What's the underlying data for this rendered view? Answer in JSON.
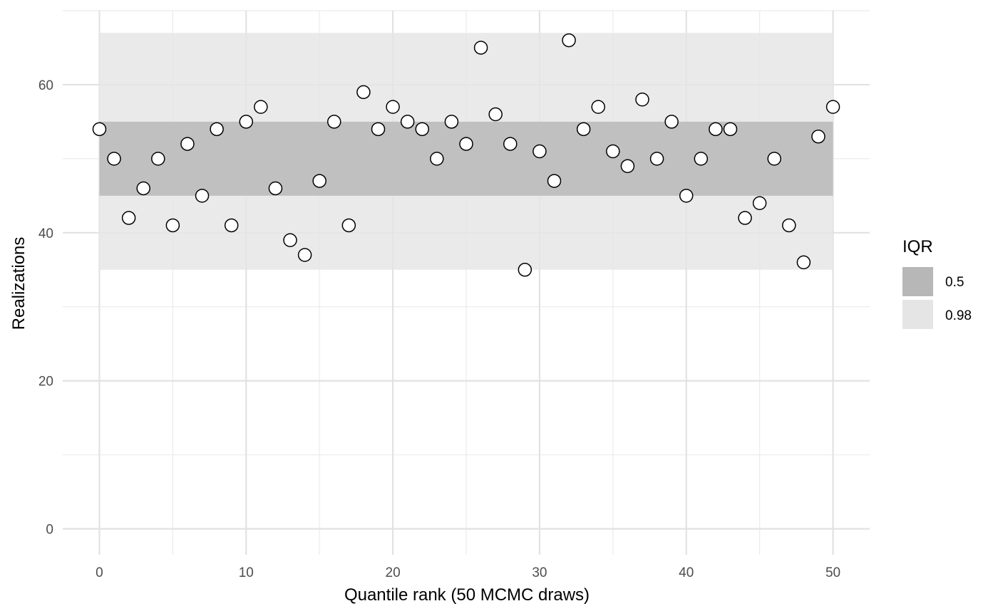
{
  "chart_data": {
    "type": "scatter",
    "title": "",
    "xlabel": "Quantile rank (50 MCMC draws)",
    "ylabel": "Realizations",
    "xlim": [
      -2.5,
      52.5
    ],
    "ylim": [
      -3.5,
      70
    ],
    "x_ticks": [
      0,
      10,
      20,
      30,
      40,
      50
    ],
    "y_ticks": [
      0,
      20,
      40,
      60
    ],
    "grid": true,
    "legend": {
      "title": "IQR",
      "placement": "right",
      "entries": [
        {
          "label": "0.5",
          "color": "#b7b7b7"
        },
        {
          "label": "0.98",
          "color": "#e5e5e5"
        }
      ]
    },
    "bands": [
      {
        "name": "0.98",
        "x_range": [
          0,
          50
        ],
        "y_range": [
          35,
          67
        ],
        "color": "#e5e5e5"
      },
      {
        "name": "0.5",
        "x_range": [
          0,
          50
        ],
        "y_range": [
          45,
          55
        ],
        "color": "#b7b7b7"
      }
    ],
    "x": [
      0,
      1,
      2,
      3,
      4,
      5,
      6,
      7,
      8,
      9,
      10,
      11,
      12,
      13,
      14,
      15,
      16,
      17,
      18,
      19,
      20,
      21,
      22,
      23,
      24,
      25,
      26,
      27,
      28,
      29,
      30,
      31,
      32,
      33,
      34,
      35,
      36,
      37,
      38,
      39,
      40,
      41,
      42,
      43,
      44,
      45,
      46,
      47,
      48,
      49,
      50
    ],
    "y": [
      54,
      50,
      42,
      46,
      50,
      41,
      52,
      45,
      54,
      41,
      55,
      57,
      46,
      39,
      37,
      47,
      55,
      41,
      59,
      54,
      57,
      55,
      54,
      50,
      55,
      52,
      65,
      56,
      52,
      35,
      51,
      47,
      66,
      54,
      57,
      51,
      49,
      58,
      50,
      55,
      45,
      50,
      54,
      54,
      42,
      44,
      50,
      41,
      36,
      53,
      57
    ],
    "point_style": {
      "fill": "#ffffff",
      "stroke": "#000000"
    }
  }
}
